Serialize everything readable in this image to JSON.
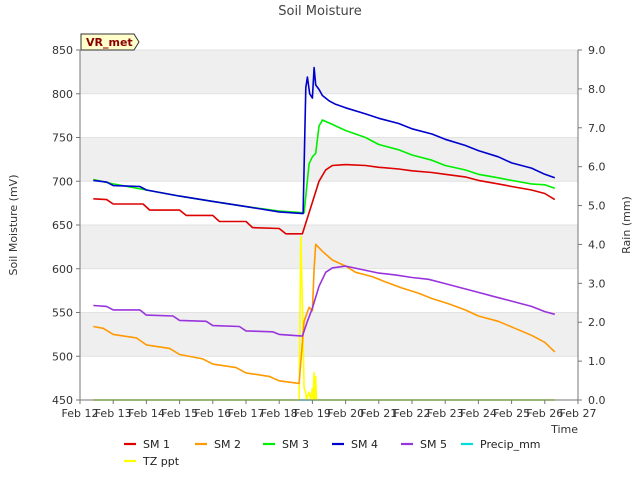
{
  "chart_data": {
    "type": "line",
    "title": "Soil Moisture",
    "badge": "VR_met",
    "xlabel": "Time",
    "ylabel": "Soil Moisture (mV)",
    "y2label": "Rain (mm)",
    "ylim": [
      450,
      850
    ],
    "y2lim": [
      0,
      9
    ],
    "xlim": [
      0,
      15
    ],
    "yticks": [
      450,
      500,
      550,
      600,
      650,
      700,
      750,
      800,
      850
    ],
    "y2ticks": [
      0.0,
      1.0,
      2.0,
      3.0,
      4.0,
      5.0,
      6.0,
      7.0,
      8.0,
      9.0
    ],
    "xtick_labels": [
      "Feb 12",
      "Feb 13",
      "Feb 14",
      "Feb 15",
      "Feb 16",
      "Feb 17",
      "Feb 18",
      "Feb 19",
      "Feb 20",
      "Feb 21",
      "Feb 22",
      "Feb 23",
      "Feb 24",
      "Feb 25",
      "Feb 26",
      "Feb 27"
    ],
    "grid": "horizontal bands",
    "legend_position": "bottom",
    "series": [
      {
        "name": "SM 1",
        "color": "#dd0000",
        "axis": "left",
        "x": [
          0.4,
          0.8,
          1.0,
          1.9,
          2.1,
          3.0,
          3.2,
          4.0,
          4.2,
          5.0,
          5.2,
          6.0,
          6.2,
          6.7,
          7.0,
          7.2,
          7.4,
          7.6,
          8.0,
          8.6,
          9.0,
          9.6,
          10.0,
          10.6,
          11.0,
          11.6,
          12.0,
          12.6,
          13.0,
          13.6,
          14.0,
          14.3
        ],
        "values": [
          680,
          679,
          674,
          674,
          667,
          667,
          661,
          661,
          654,
          654,
          647,
          646,
          640,
          640,
          676,
          700,
          713,
          718,
          719,
          718,
          716,
          714,
          712,
          710,
          708,
          705,
          701,
          697,
          694,
          690,
          686,
          679
        ]
      },
      {
        "name": "SM 2",
        "color": "#ff9900",
        "axis": "left",
        "x": [
          0.4,
          0.7,
          1.0,
          1.7,
          2.0,
          2.7,
          3.0,
          3.7,
          4.0,
          4.7,
          5.0,
          5.7,
          6.0,
          6.6,
          6.75,
          6.9,
          7.0,
          7.05,
          7.1,
          7.3,
          7.6,
          8.0,
          8.3,
          8.8,
          9.2,
          9.7,
          10.2,
          10.6,
          11.1,
          11.6,
          12.0,
          12.6,
          13.1,
          13.6,
          14.0,
          14.3
        ],
        "values": [
          534,
          532,
          525,
          521,
          513,
          509,
          502,
          497,
          491,
          487,
          481,
          477,
          472,
          469,
          540,
          556,
          552,
          600,
          628,
          620,
          610,
          603,
          596,
          591,
          585,
          578,
          572,
          566,
          560,
          553,
          546,
          540,
          532,
          524,
          516,
          505
        ]
      },
      {
        "name": "SM 3",
        "color": "#00ee00",
        "axis": "left",
        "x": [
          0.4,
          1.0,
          2.0,
          3.0,
          4.0,
          5.0,
          6.0,
          6.75,
          6.9,
          7.0,
          7.1,
          7.2,
          7.3,
          7.6,
          8.0,
          8.6,
          9.0,
          9.6,
          10.0,
          10.6,
          11.0,
          11.6,
          12.0,
          12.6,
          13.0,
          13.6,
          14.0,
          14.3
        ],
        "values": [
          702,
          697,
          690,
          683,
          677,
          671,
          666,
          664,
          720,
          728,
          732,
          763,
          770,
          765,
          758,
          750,
          742,
          736,
          730,
          724,
          718,
          713,
          708,
          704,
          701,
          697,
          696,
          692
        ]
      },
      {
        "name": "SM 4",
        "color": "#0000cc",
        "axis": "left",
        "x": [
          0.4,
          0.8,
          1.0,
          1.8,
          2.0,
          3.0,
          4.0,
          5.0,
          6.0,
          6.72,
          6.8,
          6.85,
          6.92,
          7.0,
          7.05,
          7.1,
          7.2,
          7.3,
          7.5,
          7.7,
          8.0,
          8.6,
          9.0,
          9.6,
          10.0,
          10.6,
          11.0,
          11.6,
          12.0,
          12.6,
          13.0,
          13.6,
          14.0,
          14.3
        ],
        "values": [
          701,
          699,
          695,
          694,
          690,
          683,
          677,
          671,
          665,
          663,
          807,
          819,
          800,
          795,
          830,
          810,
          805,
          798,
          792,
          788,
          784,
          777,
          772,
          766,
          760,
          754,
          748,
          741,
          735,
          728,
          721,
          715,
          708,
          704
        ]
      },
      {
        "name": "SM 5",
        "color": "#9933dd",
        "axis": "left",
        "x": [
          0.4,
          0.8,
          1.0,
          1.8,
          2.0,
          2.8,
          3.0,
          3.8,
          4.0,
          4.8,
          5.0,
          5.8,
          6.0,
          6.7,
          6.85,
          7.0,
          7.2,
          7.4,
          7.6,
          8.0,
          8.5,
          9.0,
          9.5,
          10.0,
          10.5,
          11.0,
          11.5,
          12.0,
          12.5,
          13.0,
          13.6,
          14.0,
          14.3
        ],
        "values": [
          558,
          557,
          553,
          553,
          547,
          546,
          541,
          540,
          535,
          534,
          529,
          528,
          525,
          523,
          540,
          555,
          580,
          596,
          601,
          603,
          599,
          595,
          593,
          590,
          588,
          583,
          578,
          573,
          568,
          563,
          557,
          551,
          548
        ]
      },
      {
        "name": "Precip_mm",
        "color": "#00dddd",
        "axis": "right",
        "x": [
          0.4,
          14.3
        ],
        "values": [
          0.0,
          0.0
        ]
      },
      {
        "name": "TZ ppt",
        "color": "#ffff00",
        "axis": "right",
        "x": [
          0.4,
          6.6,
          6.65,
          6.7,
          6.75,
          6.8,
          6.82,
          6.9,
          6.95,
          7.0,
          7.02,
          7.05,
          7.07,
          7.1,
          7.12,
          7.15,
          14.3
        ],
        "values": [
          0.0,
          0.0,
          4.2,
          2.5,
          0.3,
          0.2,
          0.0,
          0.2,
          0.0,
          0.3,
          0.0,
          0.7,
          0.0,
          0.6,
          0.0,
          0.0,
          0.0
        ]
      }
    ]
  }
}
